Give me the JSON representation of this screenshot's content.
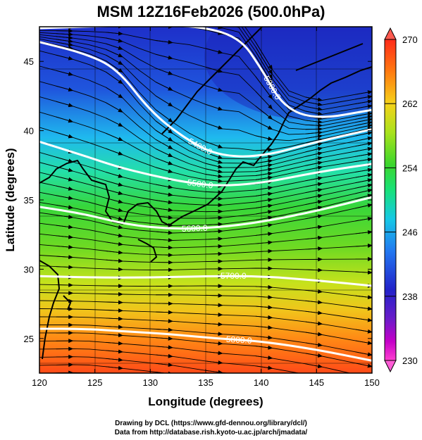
{
  "title": "MSM 12Z16Feb2026 (500.0hPa)",
  "chart_data": {
    "type": "map",
    "xlabel": "Longitude (degrees)",
    "ylabel": "Latitude  (degrees)",
    "xlim": [
      120,
      150
    ],
    "ylim": [
      22.5,
      47.5
    ],
    "x_ticks": [
      120,
      125,
      130,
      135,
      140,
      145,
      150
    ],
    "y_ticks": [
      25,
      30,
      35,
      40,
      45
    ],
    "colorbar": {
      "min": 230,
      "max": 270,
      "ticks": [
        230,
        238,
        246,
        254,
        262,
        270
      ],
      "colors": [
        "#ff3fcf",
        "#c400c8",
        "#6a1cc9",
        "#1a1ac9",
        "#2277f0",
        "#16c8e6",
        "#18e17a",
        "#3bd62d",
        "#a9e21c",
        "#f5d21a",
        "#ff7a10",
        "#ff2b1a"
      ]
    },
    "contours": [
      {
        "label": "5300.0",
        "lat_at_lon": [
          [
            120,
            47.4
          ],
          [
            128,
            47.6
          ],
          [
            134,
            47.6
          ],
          [
            138,
            46.8
          ],
          [
            140,
            44.5
          ],
          [
            142,
            41.7
          ],
          [
            145,
            40.8
          ],
          [
            150,
            41.5
          ]
        ]
      },
      {
        "label": "5400.0",
        "lat_at_lon": [
          [
            120,
            46.4
          ],
          [
            124,
            45.6
          ],
          [
            127,
            44.5
          ],
          [
            130,
            41.4
          ],
          [
            133,
            39.5
          ],
          [
            136,
            38.2
          ],
          [
            140,
            38.1
          ],
          [
            145,
            39.2
          ],
          [
            150,
            40.1
          ]
        ]
      },
      {
        "label": "5500.0",
        "lat_at_lon": [
          [
            120,
            39.2
          ],
          [
            124,
            38.2
          ],
          [
            127,
            37.4
          ],
          [
            130,
            36.8
          ],
          [
            133,
            36.3
          ],
          [
            136,
            36.0
          ],
          [
            140,
            36.2
          ],
          [
            145,
            37.0
          ],
          [
            150,
            37.6
          ]
        ]
      },
      {
        "label": "5600.0",
        "lat_at_lon": [
          [
            120,
            34.5
          ],
          [
            124,
            34.0
          ],
          [
            128,
            33.2
          ],
          [
            132,
            32.9
          ],
          [
            136,
            33.0
          ],
          [
            140,
            33.4
          ],
          [
            145,
            34.2
          ],
          [
            150,
            35.2
          ]
        ]
      },
      {
        "label": "5700.0",
        "lat_at_lon": [
          [
            120,
            29.5
          ],
          [
            125,
            29.4
          ],
          [
            130,
            29.4
          ],
          [
            135,
            29.5
          ],
          [
            140,
            29.5
          ],
          [
            145,
            29.2
          ],
          [
            150,
            28.8
          ]
        ]
      },
      {
        "label": "5800.0",
        "lat_at_lon": [
          [
            120,
            25.7
          ],
          [
            124,
            25.7
          ],
          [
            128,
            25.5
          ],
          [
            132,
            25.3
          ],
          [
            136,
            25.0
          ],
          [
            140,
            24.8
          ],
          [
            145,
            24.2
          ],
          [
            150,
            23.4
          ]
        ]
      }
    ]
  },
  "credits": {
    "line1": "Drawing by DCL (https://www.gfd-dennou.org/library/dcl/)",
    "line2": "Data from http://database.rish.kyoto-u.ac.jp/arch/jmadata/"
  }
}
